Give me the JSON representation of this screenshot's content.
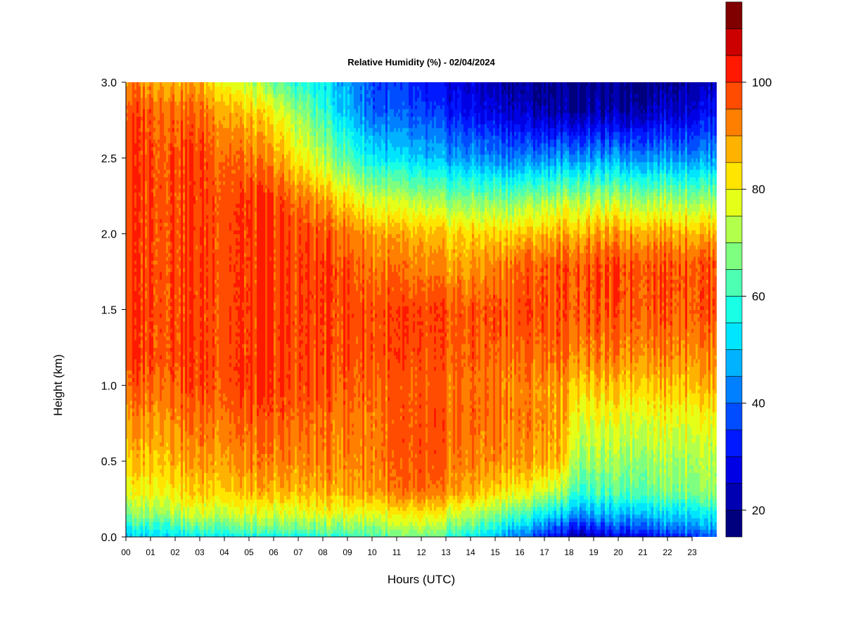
{
  "chart_data": {
    "type": "heatmap",
    "title": "Relative Humidity (%) - 02/04/2024",
    "xlabel": "Hours (UTC)",
    "ylabel": "Height (km)",
    "xlim": [
      0,
      24
    ],
    "ylim": [
      0.0,
      3.0
    ],
    "x_ticks": [
      "00",
      "01",
      "02",
      "03",
      "04",
      "05",
      "06",
      "07",
      "08",
      "09",
      "10",
      "11",
      "12",
      "13",
      "14",
      "15",
      "16",
      "17",
      "18",
      "19",
      "20",
      "21",
      "22",
      "23"
    ],
    "y_ticks": [
      "0.0",
      "0.5",
      "1.0",
      "1.5",
      "2.0",
      "2.5",
      "3.0"
    ],
    "y_tick_values": [
      0.0,
      0.5,
      1.0,
      1.5,
      2.0,
      2.5,
      3.0
    ],
    "colorbar": {
      "range": [
        15,
        100
      ],
      "step": 5,
      "tick_labels": [
        "20",
        "40",
        "60",
        "80",
        "100"
      ],
      "tick_values": [
        20,
        40,
        60,
        80,
        100
      ],
      "colors": [
        "#00007F",
        "#0000B2",
        "#0000E5",
        "#0019FF",
        "#004CFF",
        "#007FFF",
        "#00B2FF",
        "#00E5FF",
        "#19FFE5",
        "#4CFFB2",
        "#7FFF7F",
        "#B2FF4C",
        "#E5FF19",
        "#FFE500",
        "#FFB200",
        "#FF7F00",
        "#FF4C00",
        "#FF1900",
        "#CC0000",
        "#800000"
      ]
    },
    "hours": [
      0,
      3,
      6,
      8.5,
      10,
      12,
      14,
      16,
      17.5,
      18.5,
      20,
      22,
      24
    ],
    "heights_km": [
      0.0,
      0.05,
      0.15,
      0.3,
      0.5,
      0.8,
      1.0,
      1.2,
      1.5,
      1.8,
      2.0,
      2.2,
      2.5,
      2.8,
      3.0
    ],
    "humidity": [
      [
        50,
        55,
        55,
        58,
        62,
        65,
        55,
        42,
        28,
        20,
        25,
        32,
        38
      ],
      [
        55,
        62,
        64,
        66,
        68,
        70,
        62,
        48,
        35,
        30,
        35,
        42,
        45
      ],
      [
        68,
        75,
        75,
        78,
        78,
        80,
        73,
        62,
        52,
        45,
        48,
        52,
        55
      ],
      [
        78,
        85,
        86,
        88,
        90,
        93,
        88,
        80,
        72,
        60,
        63,
        68,
        70
      ],
      [
        85,
        90,
        92,
        92,
        93,
        96,
        92,
        90,
        88,
        70,
        70,
        72,
        73
      ],
      [
        90,
        95,
        96,
        94,
        94,
        96,
        95,
        93,
        90,
        78,
        78,
        80,
        80
      ],
      [
        95,
        98,
        99,
        97,
        95,
        95,
        94,
        92,
        90,
        85,
        85,
        87,
        88
      ],
      [
        99,
        99,
        99,
        98,
        98,
        96,
        96,
        95,
        95,
        92,
        92,
        93,
        92
      ],
      [
        99,
        99,
        99,
        99,
        98,
        97,
        97,
        98,
        97,
        97,
        97,
        98,
        97
      ],
      [
        99,
        99,
        99,
        99,
        94,
        90,
        89,
        95,
        97,
        97,
        98,
        98,
        97
      ],
      [
        99,
        99,
        99,
        96,
        90,
        85,
        84,
        85,
        88,
        88,
        90,
        90,
        88
      ],
      [
        99,
        99,
        99,
        88,
        78,
        72,
        70,
        70,
        74,
        75,
        74,
        74,
        72
      ],
      [
        99,
        99,
        90,
        68,
        55,
        48,
        45,
        42,
        45,
        45,
        45,
        46,
        45
      ],
      [
        98,
        95,
        80,
        55,
        40,
        35,
        30,
        25,
        22,
        22,
        22,
        26,
        30
      ],
      [
        92,
        88,
        65,
        50,
        38,
        30,
        25,
        20,
        18,
        18,
        18,
        20,
        25
      ]
    ]
  }
}
